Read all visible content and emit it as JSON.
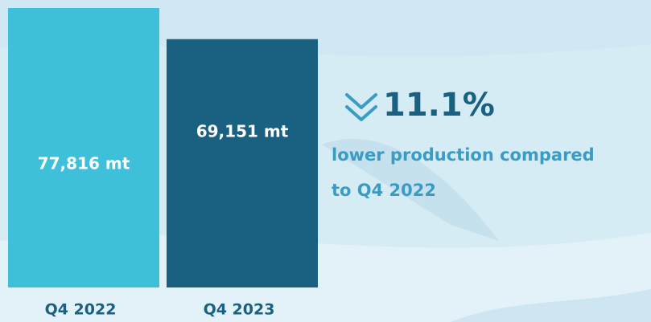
{
  "chart_data": {
    "type": "bar",
    "categories": [
      "Q4 2022",
      "Q4 2023"
    ],
    "values": [
      77816,
      69151
    ],
    "value_labels": [
      "77,816 mt",
      "69,151 mt"
    ],
    "colors": [
      "#3fc0da",
      "#1a6080"
    ],
    "change": "11.1%",
    "annotation": [
      "lower production compared",
      "to Q4 2022"
    ]
  }
}
